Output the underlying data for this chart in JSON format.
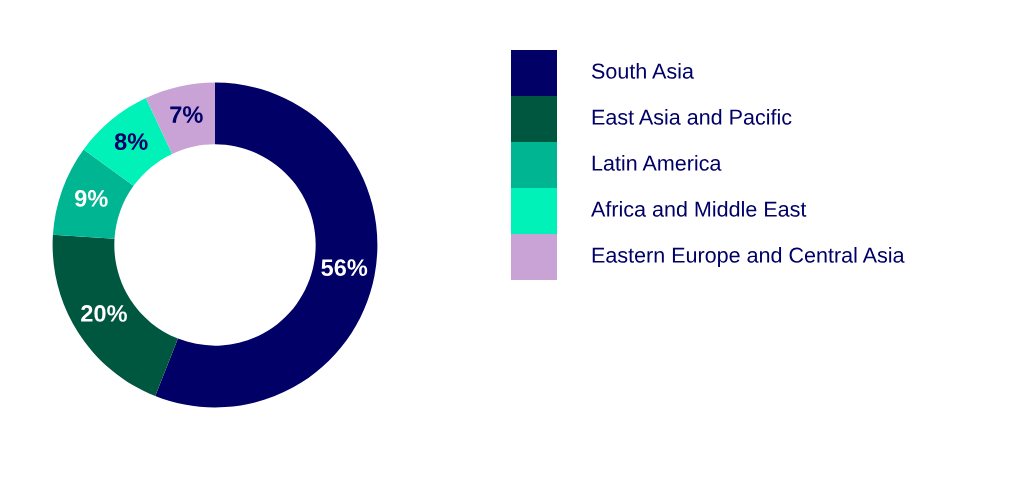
{
  "chart_data": {
    "type": "donut",
    "categories": [
      "South Asia",
      "East Asia and Pacific",
      "Latin America",
      "Africa and Middle East",
      "Eastern Europe and Central Asia"
    ],
    "values": [
      56,
      20,
      9,
      8,
      7
    ],
    "colors": [
      "#000066",
      "#00573f",
      "#00b591",
      "#00f2b8",
      "#c9a3d6"
    ],
    "value_labels": [
      "56%",
      "20%",
      "9%",
      "8%",
      "7%"
    ],
    "legend": "right"
  }
}
